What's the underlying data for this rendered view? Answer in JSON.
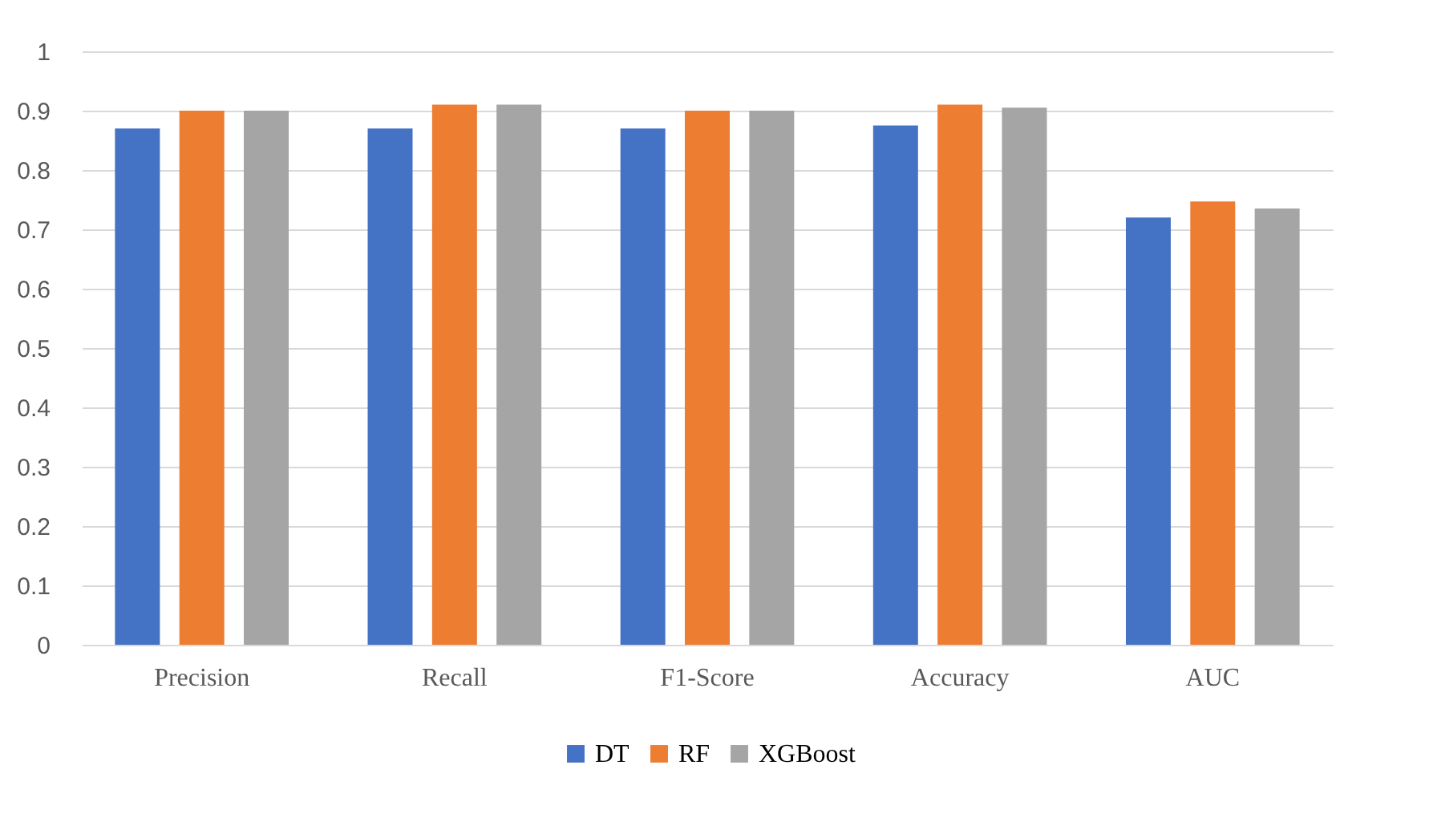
{
  "chart_data": {
    "type": "bar",
    "categories": [
      "Precision",
      "Recall",
      "F1-Score",
      "Accuracy",
      "AUC"
    ],
    "series": [
      {
        "name": "DT",
        "color": "#4472c4",
        "values": [
          0.87,
          0.87,
          0.87,
          0.875,
          0.72
        ]
      },
      {
        "name": "RF",
        "color": "#ed7d31",
        "values": [
          0.9,
          0.91,
          0.9,
          0.91,
          0.747
        ]
      },
      {
        "name": "XGBoost",
        "color": "#a5a5a5",
        "values": [
          0.9,
          0.91,
          0.9,
          0.905,
          0.735
        ]
      }
    ],
    "ylim": [
      0,
      1
    ],
    "yticks": [
      0,
      0.1,
      0.2,
      0.3,
      0.4,
      0.5,
      0.6,
      0.7,
      0.8,
      0.9,
      1
    ],
    "grid": "y",
    "legend": "bottom"
  }
}
